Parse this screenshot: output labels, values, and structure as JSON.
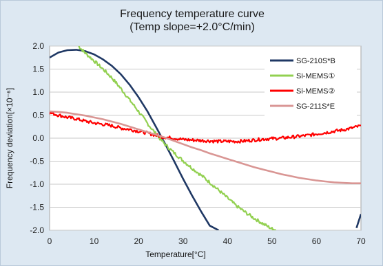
{
  "chart_data": {
    "type": "line",
    "title": "Frequency temperature curve",
    "subtitle": "(Temp slope=+2.0°C/min)",
    "xlabel": "Temperature[°C]",
    "ylabel": "Frequency deviation[×10⁻⁶]",
    "xlim": [
      0,
      70
    ],
    "ylim": [
      -2.0,
      2.0
    ],
    "x_ticks": [
      "0",
      "10",
      "20",
      "30",
      "40",
      "50",
      "60",
      "70"
    ],
    "y_ticks": [
      "2.0",
      "1.5",
      "1.0",
      "0.5",
      "0.0",
      "-0.5",
      "-1.0",
      "-1.5",
      "-2.0"
    ],
    "grid": "horizontal",
    "legend_position": "top-right",
    "series": [
      {
        "name": "SG-210S*B",
        "color": "#1f3864",
        "x": [
          0,
          2,
          4,
          6,
          8,
          10,
          12,
          14,
          16,
          18,
          20,
          22,
          24,
          26,
          28,
          30,
          32,
          34,
          36,
          38,
          40,
          42,
          44,
          46,
          48,
          50,
          52,
          54,
          56,
          58,
          60,
          62,
          64,
          66,
          68,
          69,
          70
        ],
        "y": [
          1.75,
          1.86,
          1.91,
          1.92,
          1.89,
          1.82,
          1.71,
          1.57,
          1.39,
          1.16,
          0.89,
          0.58,
          0.23,
          -0.13,
          -0.5,
          -0.88,
          -1.24,
          -1.58,
          -1.9,
          -2.0,
          null,
          null,
          null,
          null,
          null,
          null,
          null,
          null,
          null,
          null,
          null,
          null,
          null,
          null,
          null,
          -1.95,
          -1.65
        ]
      },
      {
        "name": "Si-MEMS①",
        "color": "#92d050",
        "x": [
          6.5,
          8,
          10,
          12,
          14,
          16,
          18,
          20,
          22,
          24,
          26,
          28,
          30,
          32,
          34,
          36,
          38,
          40,
          42,
          44,
          46,
          48,
          50,
          51
        ],
        "y": [
          2.0,
          1.85,
          1.68,
          1.5,
          1.31,
          1.08,
          0.83,
          0.58,
          0.32,
          0.08,
          -0.14,
          -0.32,
          -0.49,
          -0.65,
          -0.8,
          -0.96,
          -1.13,
          -1.3,
          -1.47,
          -1.61,
          -1.74,
          -1.86,
          -1.97,
          -2.0
        ]
      },
      {
        "name": "Si-MEMS②",
        "color": "#ff0000",
        "x": [
          0,
          2,
          4,
          6,
          8,
          10,
          12,
          14,
          16,
          18,
          20,
          22,
          24,
          26,
          28,
          30,
          32,
          34,
          36,
          38,
          40,
          42,
          44,
          46,
          48,
          50,
          52,
          54,
          56,
          58,
          60,
          62,
          64,
          66,
          68,
          70
        ],
        "y": [
          0.55,
          0.5,
          0.45,
          0.42,
          0.37,
          0.33,
          0.3,
          0.27,
          0.22,
          0.19,
          0.15,
          0.11,
          0.06,
          0.02,
          0.0,
          -0.03,
          -0.04,
          -0.05,
          -0.06,
          -0.07,
          -0.07,
          -0.07,
          -0.06,
          -0.04,
          -0.02,
          -0.01,
          0.0,
          0.02,
          0.04,
          0.06,
          0.09,
          0.12,
          0.15,
          0.18,
          0.22,
          0.27
        ]
      },
      {
        "name": "SG-211S*E",
        "color": "#d99694",
        "x": [
          0,
          2,
          4,
          6,
          8,
          10,
          12,
          14,
          16,
          18,
          20,
          22,
          24,
          26,
          28,
          30,
          32,
          34,
          36,
          38,
          40,
          42,
          44,
          46,
          48,
          50,
          52,
          54,
          56,
          58,
          60,
          62,
          64,
          66,
          68,
          70
        ],
        "y": [
          0.58,
          0.57,
          0.55,
          0.52,
          0.49,
          0.45,
          0.41,
          0.36,
          0.31,
          0.25,
          0.19,
          0.13,
          0.07,
          0.01,
          -0.06,
          -0.13,
          -0.2,
          -0.26,
          -0.33,
          -0.39,
          -0.45,
          -0.51,
          -0.57,
          -0.63,
          -0.68,
          -0.73,
          -0.78,
          -0.82,
          -0.86,
          -0.89,
          -0.92,
          -0.94,
          -0.96,
          -0.97,
          -0.98,
          -0.98
        ]
      }
    ]
  }
}
